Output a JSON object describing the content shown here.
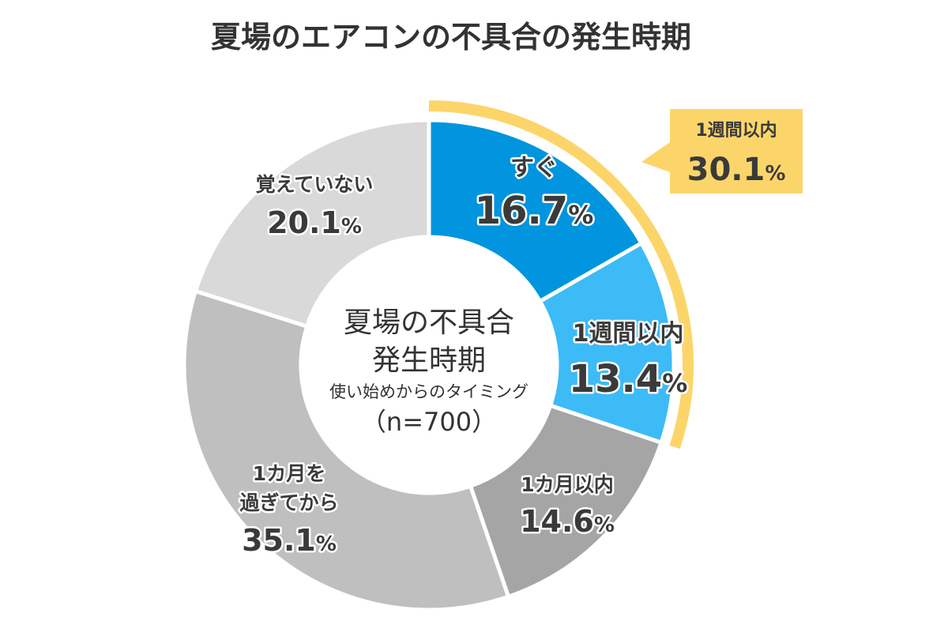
{
  "chart_data": {
    "type": "pie",
    "style": "donut",
    "title": "夏場のエアコンの不具合の発生時期",
    "center_text": {
      "line1": "夏場の不具合",
      "line2": "発生時期",
      "line3": "使い始めからのタイミング",
      "line4": "（n=700）"
    },
    "slices": [
      {
        "label": "すぐ",
        "value": 16.7,
        "display": "16.7%",
        "color": "#0095de"
      },
      {
        "label": "1週間以内",
        "value": 13.4,
        "display": "13.4%",
        "color": "#3dbbf6"
      },
      {
        "label": "1カ月以内",
        "value": 14.6,
        "display": "14.6%",
        "color": "#a5a5a5"
      },
      {
        "label_lines": [
          "1カ月を",
          "過ぎてから"
        ],
        "value": 35.1,
        "display": "35.1%",
        "color": "#bfbfbf"
      },
      {
        "label": "覚えていない",
        "value": 20.1,
        "display": "20.1%",
        "color": "#d9d9d9"
      }
    ],
    "start_angle": "12 o'clock",
    "direction": "clockwise",
    "highlight": {
      "label": "1週間以内",
      "value": 30.1,
      "display": "30.1%",
      "covers_slices": [
        "すぐ",
        "1週間以内"
      ],
      "color": "#fcd56a"
    }
  }
}
